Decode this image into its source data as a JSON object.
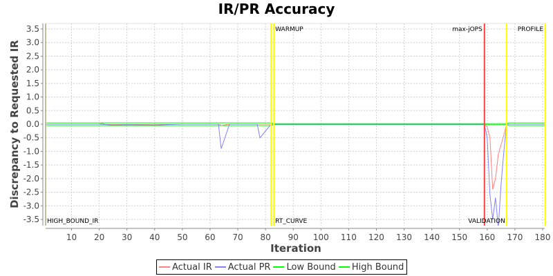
{
  "chart_data": {
    "type": "line",
    "title": "IR/PR Accuracy",
    "xlabel": "Iteration",
    "ylabel": "Discrepancy to Requested IR",
    "xlim": [
      0.6,
      181
    ],
    "ylim": [
      -3.6,
      3.65
    ],
    "grid": true,
    "legend_position": "bottom",
    "x_ticks": [
      10,
      20,
      30,
      40,
      50,
      60,
      70,
      80,
      90,
      100,
      110,
      120,
      130,
      140,
      150,
      160,
      170,
      180
    ],
    "x_tick_labels": [
      "10",
      "20",
      "30",
      "40",
      "50",
      "60",
      "70",
      "80",
      "90",
      "100",
      "110",
      "120",
      "130",
      "140",
      "150",
      "160",
      "170",
      "180"
    ],
    "y_ticks": [
      3.5,
      3.0,
      2.5,
      2.0,
      1.5,
      1.0,
      0.5,
      0.0,
      -0.5,
      -1.0,
      -1.5,
      -2.0,
      -2.5,
      -3.0,
      -3.5
    ],
    "y_tick_labels": [
      "3.5",
      "3.0",
      "2.5",
      "2.0",
      "1.5",
      "1.0",
      "0.5",
      "0.0",
      "-0.5",
      "-1.0",
      "-1.5",
      "-2.0",
      "-2.5",
      "-3.0",
      "-3.5"
    ],
    "series": [
      {
        "name": "Actual IR",
        "color": "#ff8080",
        "x": [
          1,
          20,
          21,
          22,
          25,
          40,
          63,
          64,
          67,
          82,
          83,
          159,
          160,
          161,
          162,
          163,
          164,
          165,
          166,
          167,
          181
        ],
        "values": [
          0.0,
          0.0,
          0.03,
          0.0,
          -0.01,
          0.0,
          0.0,
          -0.05,
          0.0,
          0.0,
          0.0,
          0.0,
          -0.1,
          -0.5,
          -2.4,
          -2.0,
          -1.1,
          -0.75,
          -0.4,
          0.0,
          0.0
        ]
      },
      {
        "name": "Actual PR",
        "color": "#8080ff",
        "x": [
          1,
          20,
          25,
          30,
          40,
          50,
          63,
          64,
          67,
          77,
          78,
          82,
          83,
          159,
          160,
          161,
          162,
          163,
          164,
          165,
          166,
          167,
          181
        ],
        "values": [
          0.0,
          0.0,
          -0.03,
          -0.02,
          -0.03,
          0.0,
          0.0,
          -0.9,
          0.0,
          0.0,
          -0.5,
          0.0,
          0.0,
          0.0,
          -0.5,
          -2.6,
          -3.5,
          -2.7,
          -3.8,
          -2.2,
          -1.0,
          0.0,
          0.0
        ]
      },
      {
        "name": "Low Bound",
        "color": "#00ff00",
        "x": [
          1,
          82,
          83,
          159,
          167,
          168,
          181
        ],
        "values": [
          -0.05,
          -0.05,
          -0.02,
          -0.02,
          -0.02,
          -0.05,
          -0.05
        ]
      },
      {
        "name": "High Bound",
        "color": "#00ff00",
        "x": [
          1,
          82,
          83,
          159,
          167,
          168,
          181
        ],
        "values": [
          0.05,
          0.05,
          0.02,
          0.02,
          0.02,
          0.05,
          0.05
        ]
      }
    ],
    "markers": [
      {
        "x": 82,
        "color": "#ffff00",
        "label": "",
        "label_pos": "none"
      },
      {
        "x": 83,
        "color": "#ffff00",
        "label": "WARMUP",
        "label_pos": "top-right"
      },
      {
        "x": 83,
        "color": "#ffff00",
        "label": "RT_CURVE",
        "label_pos": "bottom-right"
      },
      {
        "x": 159,
        "color": "#ff4040",
        "label": "max-jOPS",
        "label_pos": "top-left"
      },
      {
        "x": 167,
        "color": "#ffff00",
        "label": "VALIDATION",
        "label_pos": "bottom-left"
      },
      {
        "x": 181,
        "color": "#ffff00",
        "label": "PROFILE",
        "label_pos": "top-left"
      }
    ],
    "annotations": [
      {
        "text": "HIGH_BOUND_IR",
        "position": "bottom-left"
      }
    ]
  },
  "legend": {
    "items": [
      {
        "label": "Actual IR",
        "color": "#ff8080"
      },
      {
        "label": "Actual PR",
        "color": "#8080ff"
      },
      {
        "label": "Low Bound",
        "color": "#00ff00"
      },
      {
        "label": "High Bound",
        "color": "#00ff00"
      }
    ]
  }
}
